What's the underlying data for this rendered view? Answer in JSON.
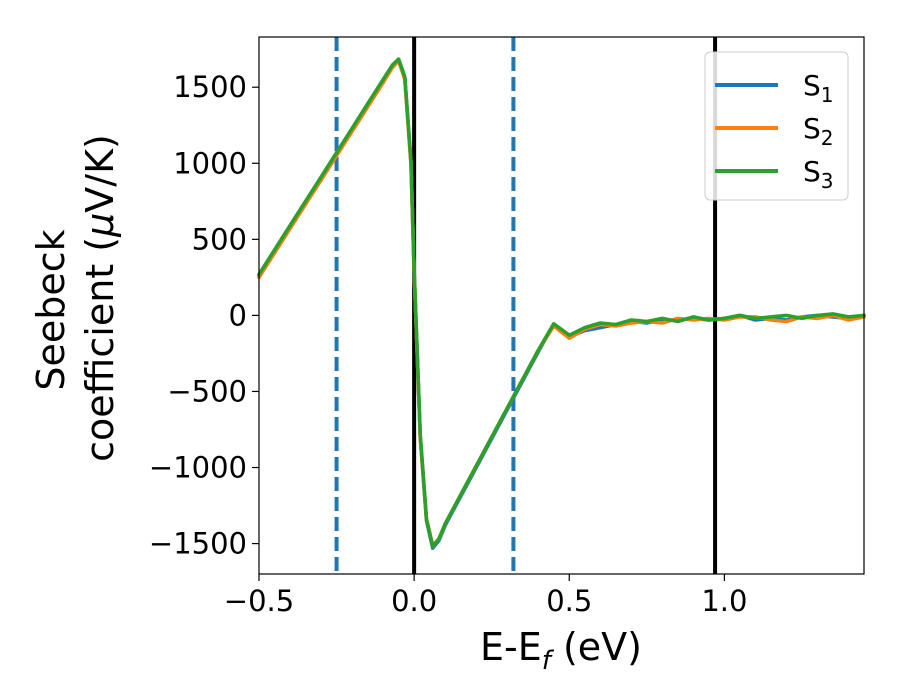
{
  "chart_data": {
    "type": "line",
    "xlabel": "E-E",
    "xlabel_sub": "f",
    "xlabel_unit": " (eV)",
    "ylabel_line1": "Seebeck",
    "ylabel_line2": "coefficient  (",
    "ylabel_mu": "μ",
    "ylabel_unit": "V/K)",
    "xlim": [
      -0.5,
      1.45
    ],
    "ylim": [
      -1700,
      1830
    ],
    "xticks": [
      -0.5,
      0.0,
      0.5,
      1.0
    ],
    "xtick_labels": [
      "−0.5",
      "0.0",
      "0.5",
      "1.0"
    ],
    "yticks": [
      -1500,
      -1000,
      -500,
      0,
      500,
      1000,
      1500
    ],
    "ytick_labels": [
      "−1500",
      "−1000",
      "−500",
      "0",
      "500",
      "1000",
      "1500"
    ],
    "grid": false,
    "legend_position": "top-right",
    "vlines": [
      {
        "x": -0.25,
        "style": "dashed",
        "color": "#1f77b4"
      },
      {
        "x": 0.0,
        "style": "solid",
        "color": "#000000"
      },
      {
        "x": 0.32,
        "style": "dashed",
        "color": "#1f77b4"
      },
      {
        "x": 0.97,
        "style": "solid",
        "color": "#000000"
      }
    ],
    "series": [
      {
        "name": "S",
        "sub": "1",
        "color": "#1f77b4",
        "x": [
          -0.5,
          -0.45,
          -0.4,
          -0.35,
          -0.3,
          -0.25,
          -0.2,
          -0.15,
          -0.1,
          -0.07,
          -0.05,
          -0.03,
          -0.01,
          0.0,
          0.02,
          0.04,
          0.06,
          0.08,
          0.1,
          0.15,
          0.2,
          0.25,
          0.3,
          0.35,
          0.4,
          0.45,
          0.5,
          0.55,
          0.6,
          0.65,
          0.7,
          0.75,
          0.8,
          0.85,
          0.9,
          0.95,
          1.0,
          1.05,
          1.1,
          1.15,
          1.2,
          1.25,
          1.3,
          1.35,
          1.4,
          1.45
        ],
        "y": [
          260,
          420,
          580,
          740,
          900,
          1060,
          1220,
          1380,
          1540,
          1640,
          1680,
          1560,
          1000,
          300,
          -800,
          -1350,
          -1530,
          -1480,
          -1380,
          -1190,
          -1000,
          -810,
          -620,
          -430,
          -240,
          -60,
          -140,
          -100,
          -80,
          -60,
          -40,
          -50,
          -30,
          -30,
          -20,
          -30,
          -20,
          0,
          -30,
          -20,
          -30,
          -10,
          0,
          -10,
          -20,
          0
        ]
      },
      {
        "name": "S",
        "sub": "2",
        "color": "#ff7f0e",
        "x": [
          -0.5,
          -0.45,
          -0.4,
          -0.35,
          -0.3,
          -0.25,
          -0.2,
          -0.15,
          -0.1,
          -0.07,
          -0.05,
          -0.03,
          -0.01,
          0.0,
          0.02,
          0.04,
          0.06,
          0.08,
          0.1,
          0.15,
          0.2,
          0.25,
          0.3,
          0.35,
          0.4,
          0.45,
          0.5,
          0.55,
          0.6,
          0.65,
          0.7,
          0.75,
          0.8,
          0.85,
          0.9,
          0.95,
          1.0,
          1.05,
          1.1,
          1.15,
          1.2,
          1.25,
          1.3,
          1.35,
          1.4,
          1.45
        ],
        "y": [
          250,
          410,
          570,
          730,
          890,
          1050,
          1210,
          1370,
          1530,
          1630,
          1675,
          1550,
          990,
          290,
          -810,
          -1340,
          -1510,
          -1470,
          -1370,
          -1180,
          -990,
          -800,
          -610,
          -420,
          -230,
          -70,
          -150,
          -90,
          -60,
          -70,
          -50,
          -40,
          -50,
          -20,
          -30,
          -20,
          -30,
          -10,
          -10,
          -30,
          -40,
          -10,
          -20,
          0,
          -30,
          -10
        ]
      },
      {
        "name": "S",
        "sub": "3",
        "color": "#2ca02c",
        "x": [
          -0.5,
          -0.45,
          -0.4,
          -0.35,
          -0.3,
          -0.25,
          -0.2,
          -0.15,
          -0.1,
          -0.07,
          -0.05,
          -0.03,
          -0.01,
          0.0,
          0.02,
          0.04,
          0.06,
          0.08,
          0.1,
          0.15,
          0.2,
          0.25,
          0.3,
          0.35,
          0.4,
          0.45,
          0.5,
          0.55,
          0.6,
          0.65,
          0.7,
          0.75,
          0.8,
          0.85,
          0.9,
          0.95,
          1.0,
          1.05,
          1.1,
          1.15,
          1.2,
          1.25,
          1.3,
          1.35,
          1.4,
          1.45
        ],
        "y": [
          270,
          430,
          590,
          750,
          910,
          1070,
          1230,
          1390,
          1550,
          1645,
          1685,
          1570,
          1010,
          310,
          -790,
          -1340,
          -1520,
          -1470,
          -1370,
          -1180,
          -990,
          -800,
          -610,
          -420,
          -230,
          -55,
          -130,
          -80,
          -50,
          -60,
          -30,
          -40,
          -20,
          -40,
          -10,
          -30,
          -20,
          0,
          -20,
          -10,
          0,
          -20,
          0,
          10,
          -10,
          0
        ]
      }
    ]
  }
}
